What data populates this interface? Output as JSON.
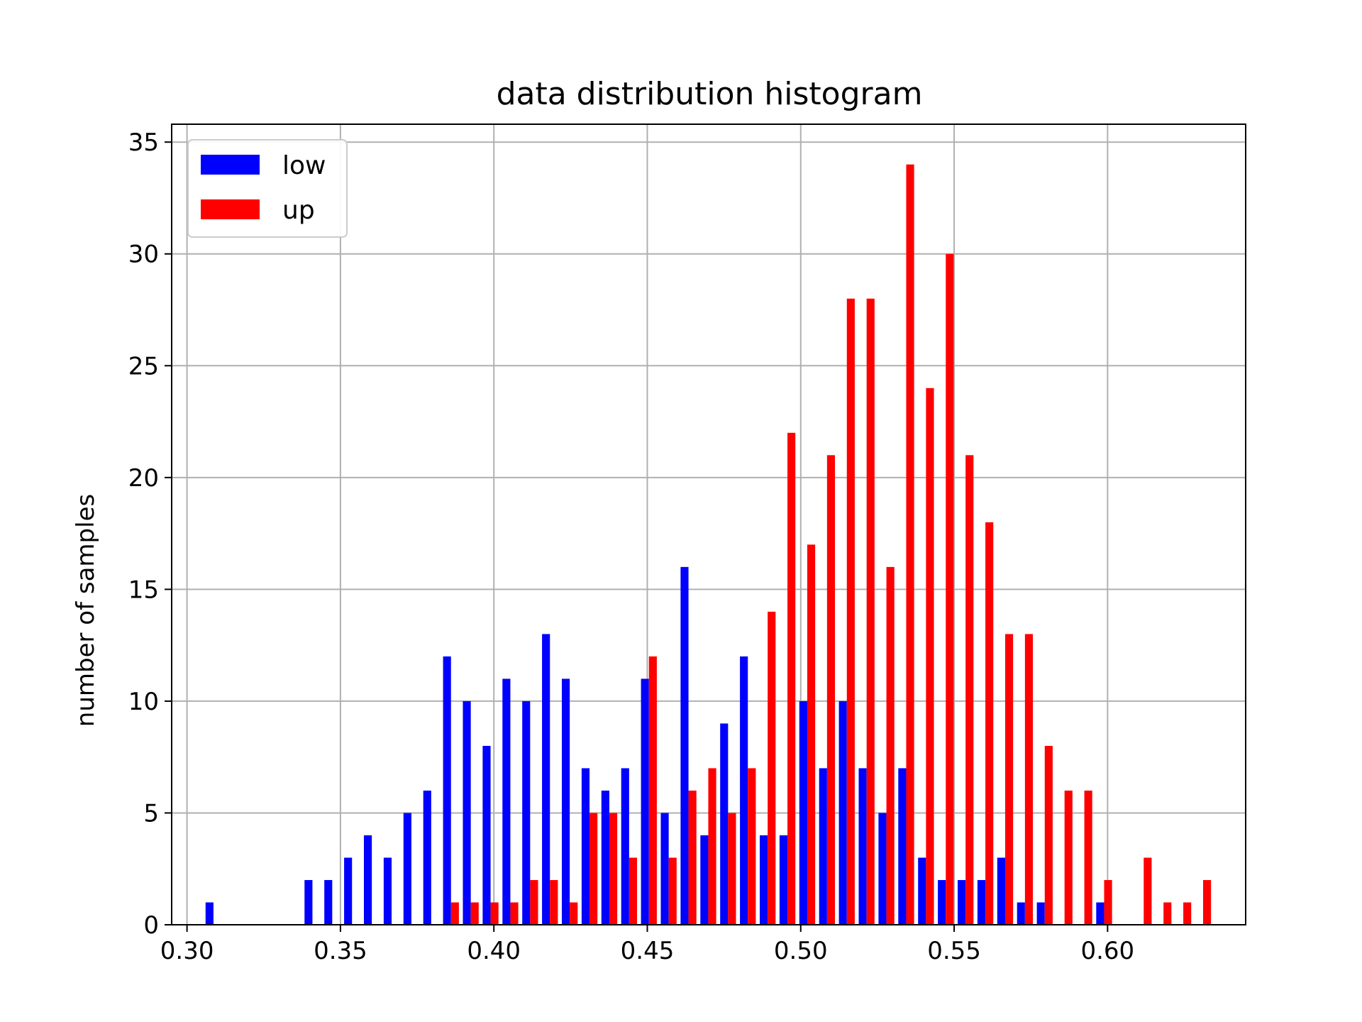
{
  "chart_data": {
    "type": "bar",
    "title": "data distribution histogram",
    "xlabel": "",
    "ylabel": "number of samples",
    "xlim": [
      0.295,
      0.645
    ],
    "ylim": [
      0,
      35.8
    ],
    "x_ticks": [
      "0.30",
      "0.35",
      "0.40",
      "0.45",
      "0.50",
      "0.55",
      "0.60"
    ],
    "x_tick_values": [
      0.3,
      0.35,
      0.4,
      0.45,
      0.5,
      0.55,
      0.6
    ],
    "y_ticks": [
      "0",
      "5",
      "10",
      "15",
      "20",
      "25",
      "30",
      "35"
    ],
    "y_tick_values": [
      0,
      5,
      10,
      15,
      20,
      25,
      30,
      35
    ],
    "grid": true,
    "legend_position": "upper-left",
    "bin_edges_start": 0.3054,
    "bin_width": 0.00645,
    "series": [
      {
        "name": "low",
        "color": "#0000ff",
        "values": [
          1,
          0,
          0,
          0,
          0,
          2,
          2,
          3,
          4,
          3,
          5,
          6,
          12,
          10,
          8,
          11,
          10,
          13,
          11,
          7,
          6,
          7,
          11,
          5,
          16,
          4,
          9,
          12,
          4,
          4,
          10,
          7,
          10,
          7,
          5,
          7,
          3,
          2,
          2,
          2,
          3,
          1,
          1,
          0,
          0,
          1,
          0,
          0,
          0,
          0,
          0
        ]
      },
      {
        "name": "up",
        "color": "#ff0000",
        "values": [
          0,
          0,
          0,
          0,
          0,
          0,
          0,
          0,
          0,
          0,
          0,
          0,
          1,
          1,
          1,
          1,
          2,
          2,
          1,
          5,
          5,
          3,
          12,
          3,
          6,
          7,
          5,
          7,
          14,
          22,
          17,
          21,
          28,
          28,
          16,
          34,
          24,
          30,
          21,
          18,
          13,
          13,
          8,
          6,
          6,
          2,
          0,
          3,
          1,
          1,
          2
        ]
      }
    ]
  }
}
